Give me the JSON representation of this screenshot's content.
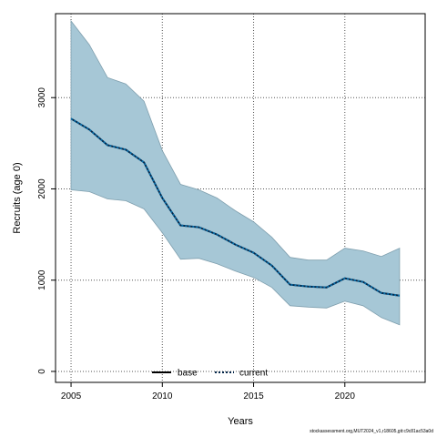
{
  "chart_data": {
    "type": "area",
    "xlabel": "Years",
    "ylabel": "Recruits (age 0)",
    "xlim": [
      2004.15,
      2024.4
    ],
    "ylim": [
      -120,
      3920
    ],
    "x_ticks": [
      2005,
      2010,
      2015,
      2020
    ],
    "y_ticks": [
      0,
      1000,
      2000,
      3000
    ],
    "grid": true,
    "legend_position": "bottom-center",
    "colors": {
      "band": "#a6c7d6",
      "band_edge": "#7f9fae",
      "line": "#04274a",
      "grid": "#555555"
    },
    "x": [
      2005,
      2006,
      2007,
      2008,
      2009,
      2010,
      2011,
      2012,
      2013,
      2014,
      2015,
      2016,
      2017,
      2018,
      2019,
      2020,
      2021,
      2022,
      2023
    ],
    "band_upper": [
      3840,
      3580,
      3220,
      3150,
      2960,
      2420,
      2050,
      1990,
      1900,
      1760,
      1640,
      1470,
      1250,
      1220,
      1220,
      1350,
      1320,
      1260,
      1350
    ],
    "band_lower": [
      1990,
      1970,
      1890,
      1870,
      1780,
      1520,
      1230,
      1240,
      1180,
      1100,
      1030,
      920,
      720,
      705,
      695,
      770,
      720,
      590,
      510
    ],
    "series": [
      {
        "name": "base",
        "style": "solid",
        "values": [
          2770,
          2650,
          2480,
          2430,
          2290,
          1900,
          1600,
          1580,
          1500,
          1390,
          1300,
          1160,
          950,
          930,
          920,
          1020,
          980,
          860,
          830
        ]
      },
      {
        "name": "current",
        "style": "dotted",
        "values": [
          2770,
          2650,
          2480,
          2430,
          2290,
          1900,
          1600,
          1580,
          1500,
          1390,
          1300,
          1160,
          950,
          930,
          920,
          1020,
          980,
          860,
          830
        ]
      }
    ]
  },
  "footnote": "stockassessment.org,MUT2024_v1,r18605,git:c9c81ac53a0d"
}
